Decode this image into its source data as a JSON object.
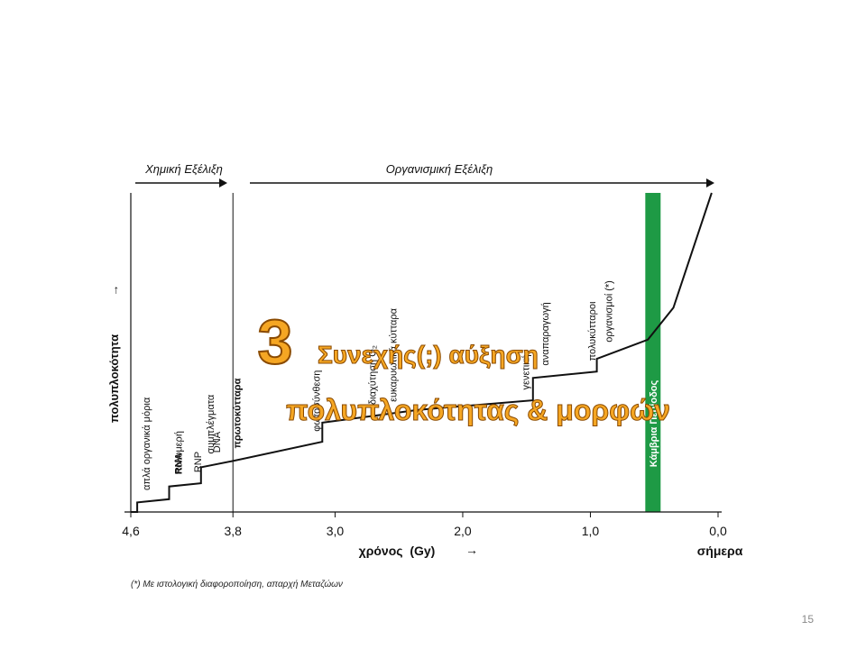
{
  "slide": {
    "number": "15"
  },
  "header": {
    "chemical_evolution": "Χημική Εξέλιξη",
    "organismic_evolution": "Οργανισμική Εξέλιξη"
  },
  "overlay": {
    "number": "3",
    "line1": "Συνεχής(;) αύξηση",
    "line2": "πολυπλοκότητας & μορφών"
  },
  "footnote": "(*) Με ιστολογική διαφοροποίηση, απαρχή Μεταζώων",
  "cambrian_label": "Κάμβρια Περίοδος",
  "arrow_glyph": "→",
  "colors": {
    "cambrian_band": "#1e9a45",
    "overlay_fill": "#f5a623",
    "overlay_stroke": "#8a4a00",
    "line": "#111111"
  },
  "chart_data": {
    "type": "line",
    "title": "",
    "xlabel": "χρόνος  (Gy)",
    "ylabel": "πολυπλοκότητα",
    "x_reversed": true,
    "xlim": [
      4.6,
      0.0
    ],
    "xticks": [
      {
        "value": 4.6,
        "label": "4,6"
      },
      {
        "value": 3.8,
        "label": "3,8"
      },
      {
        "value": 3.0,
        "label": "3,0"
      },
      {
        "value": 2.0,
        "label": "2,0"
      },
      {
        "value": 1.0,
        "label": "1,0"
      },
      {
        "value": 0.0,
        "label": "0,0"
      }
    ],
    "now_label": "σήμερα",
    "ylim": [
      0,
      100
    ],
    "x": [
      4.6,
      4.55,
      4.55,
      4.3,
      4.3,
      4.05,
      4.05,
      3.8,
      3.1,
      3.1,
      2.35,
      1.45,
      1.45,
      0.95,
      0.95,
      0.55,
      0.35,
      0.05
    ],
    "y": [
      0,
      0,
      3,
      4,
      8,
      9,
      14,
      16,
      22,
      28,
      32,
      35,
      42,
      44,
      48,
      54,
      64,
      100
    ],
    "marker_line_x": 3.8,
    "cambrian_band": [
      0.57,
      0.45
    ],
    "annotations": [
      {
        "x": 4.45,
        "text": "απλά οργανικά μόρια",
        "bold": false
      },
      {
        "x": 4.2,
        "text": "πολυμερή",
        "bold": false
      },
      {
        "x": 3.95,
        "text": "συμπλέγματα",
        "bold": false
      },
      {
        "x": 4.2,
        "text": "RNA",
        "bold": true
      },
      {
        "x": 4.05,
        "text": "RNP",
        "bold": false
      },
      {
        "x": 3.9,
        "text": "DNA",
        "bold": false
      },
      {
        "x": 3.74,
        "text": "πρωτοκύτταρα",
        "bold": true
      },
      {
        "x": 3.12,
        "text": "φωτοσύνθεση",
        "bold": false
      },
      {
        "x": 2.68,
        "text": "διαχύτηση O₂",
        "bold": false
      },
      {
        "x": 2.52,
        "text": "ευκαρυωτικά κύτταρα",
        "bold": false
      },
      {
        "x": 1.48,
        "text": "γενετική",
        "bold": false
      },
      {
        "x": 1.33,
        "text": "αναπαραγωγή",
        "bold": false
      },
      {
        "x": 0.96,
        "text": "πολυκύτταροι",
        "bold": false
      },
      {
        "x": 0.83,
        "text": "οργανισμοί (*)",
        "bold": false
      }
    ]
  }
}
